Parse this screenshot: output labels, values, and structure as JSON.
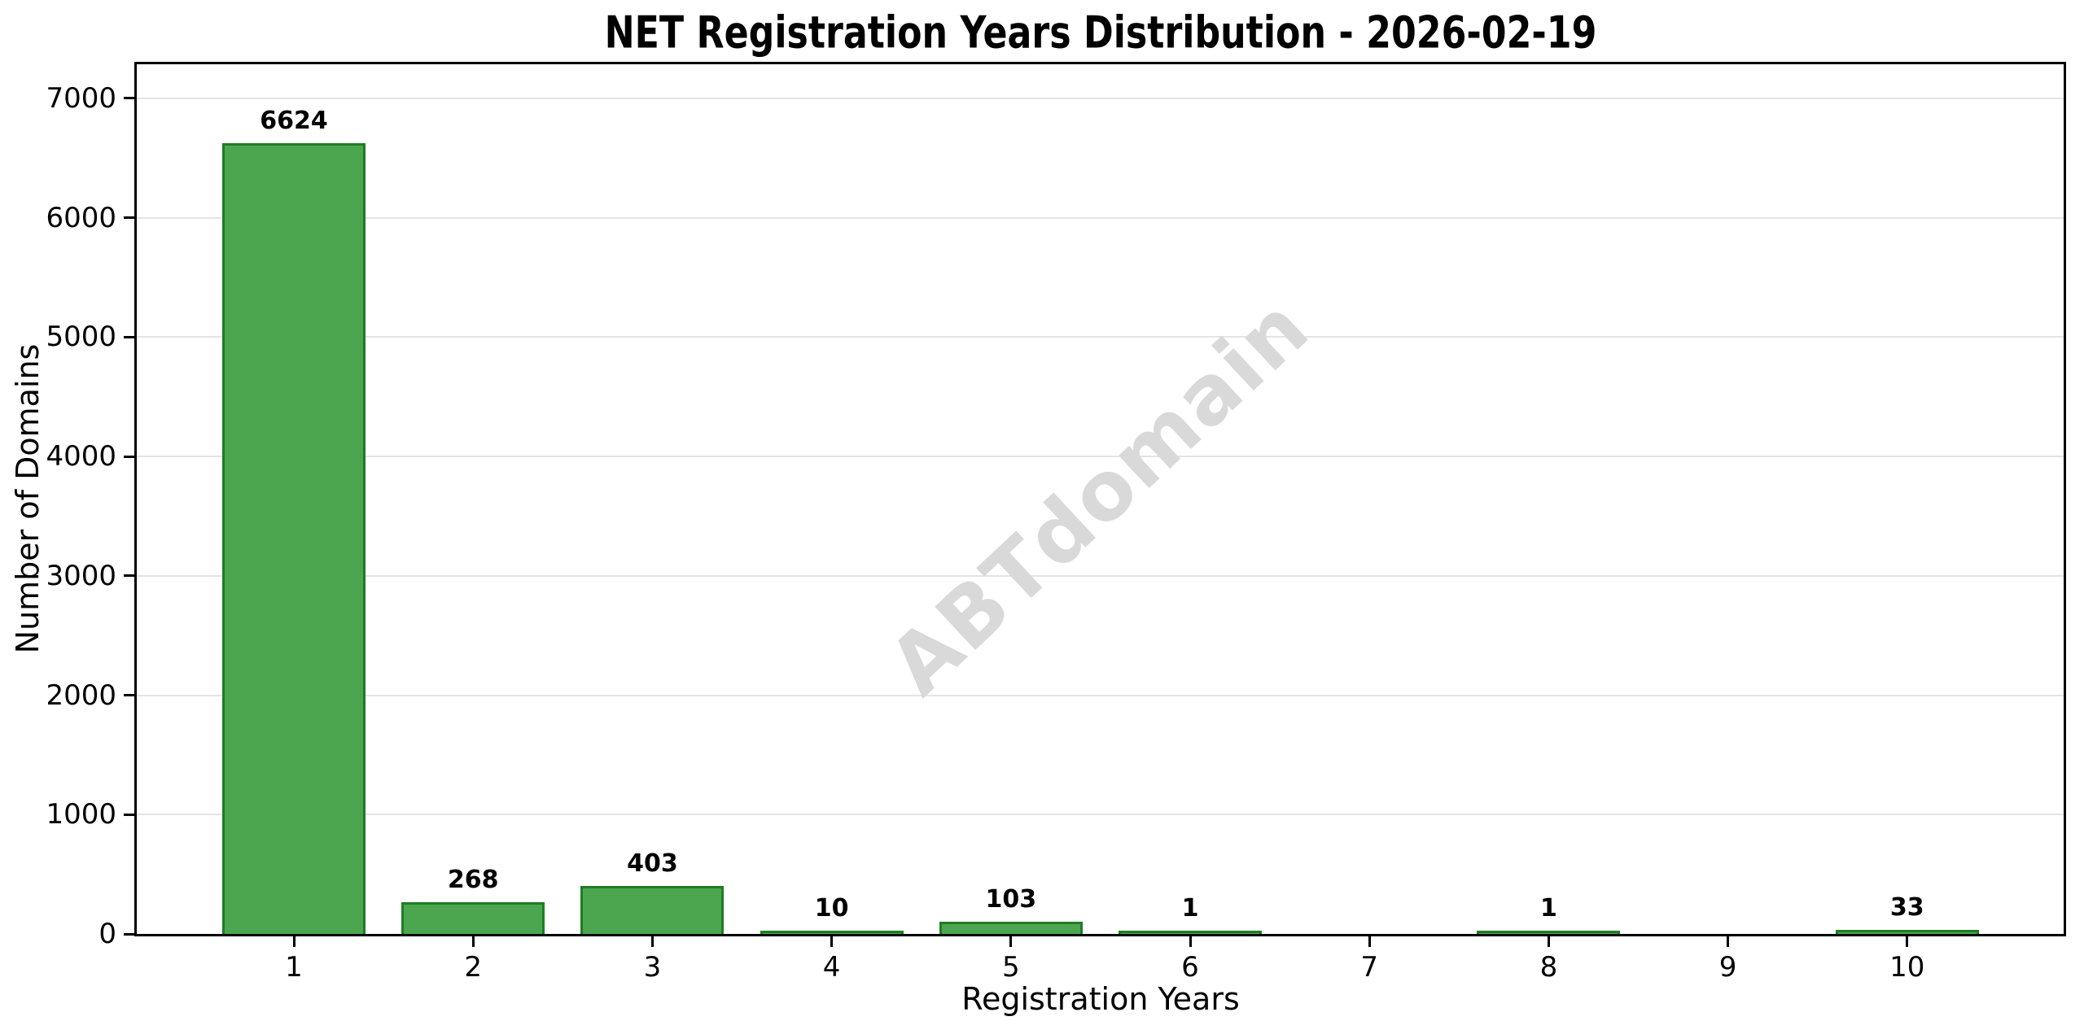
{
  "chart_data": {
    "type": "bar",
    "title": "NET Registration Years Distribution - 2026-02-19",
    "xlabel": "Registration Years",
    "ylabel": "Number of Domains",
    "categories": [
      "1",
      "2",
      "3",
      "4",
      "5",
      "6",
      "7",
      "8",
      "9",
      "10"
    ],
    "values": [
      6624,
      268,
      403,
      10,
      103,
      1,
      0,
      1,
      0,
      33
    ],
    "bar_value_labels": [
      "6624",
      "268",
      "403",
      "10",
      "103",
      "1",
      "",
      "1",
      "",
      "33"
    ],
    "ylim": [
      0,
      7286
    ],
    "yticks": [
      0,
      1000,
      2000,
      3000,
      4000,
      5000,
      6000,
      7000
    ],
    "grid": "horizontal",
    "legend_position": "none",
    "colors": {
      "bar_fill": "#4CA64F",
      "bar_edge": "#1E7D22",
      "gridline": "#e4e4e4",
      "axis": "#000000",
      "watermark": "#d9d9d9"
    },
    "watermark": {
      "text": "ABTdomain",
      "rotation_deg": -43
    }
  }
}
